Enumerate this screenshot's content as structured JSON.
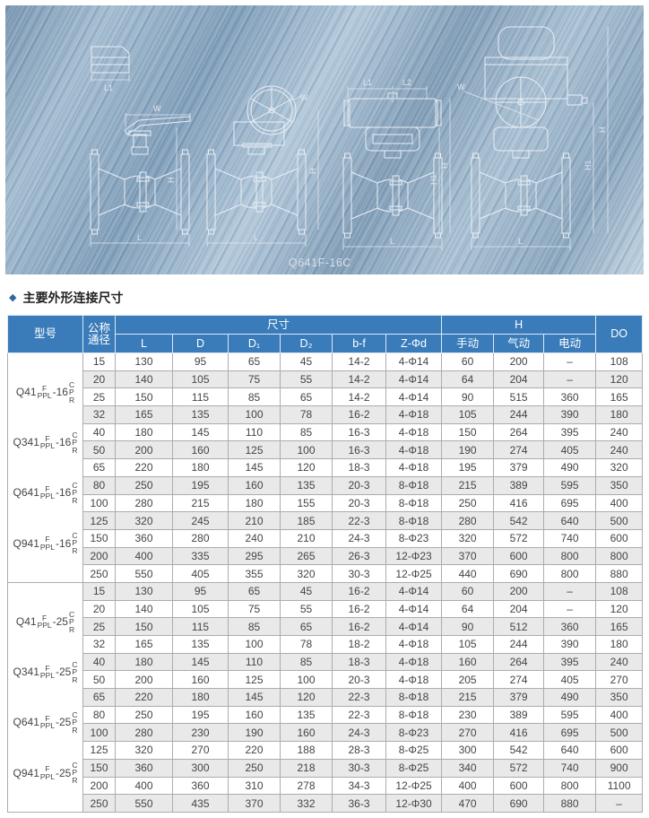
{
  "drawing": {
    "caption": "Q641F-16C",
    "labels": {
      "l": "L",
      "l1": "L1",
      "l2": "L2",
      "w": "W",
      "h": "H",
      "h1": "H1"
    }
  },
  "page": {
    "bullet": "◆",
    "title": "主要外形连接尺寸"
  },
  "table": {
    "header": {
      "model": "型号",
      "dn": "公称通径",
      "size": "尺寸",
      "h": "H",
      "do": "DO",
      "size_cols": [
        "L",
        "D",
        "D₁",
        "D₂",
        "b-f",
        "Z-Φd"
      ],
      "h_cols": [
        "手动",
        "气动",
        "电动"
      ]
    },
    "sections": [
      {
        "models": [
          {
            "base": "Q41",
            "sup": "F",
            "sub": "PPL",
            "mid": "-16",
            "stack": [
              "C",
              "P",
              "R"
            ]
          },
          {
            "base": "Q341",
            "sup": "F",
            "sub": "PPL",
            "mid": "-16",
            "stack": [
              "C",
              "P",
              "R"
            ]
          },
          {
            "base": "Q641",
            "sup": "F",
            "sub": "PPL",
            "mid": "-16",
            "stack": [
              "C",
              "P",
              "R"
            ]
          },
          {
            "base": "Q941",
            "sup": "F",
            "sub": "PPL",
            "mid": "-16",
            "stack": [
              "C",
              "P",
              "R"
            ]
          }
        ],
        "rows": [
          [
            "15",
            "130",
            "95",
            "65",
            "45",
            "14-2",
            "4-Φ14",
            "60",
            "200",
            "–",
            "108"
          ],
          [
            "20",
            "140",
            "105",
            "75",
            "55",
            "14-2",
            "4-Φ14",
            "64",
            "204",
            "–",
            "120"
          ],
          [
            "25",
            "150",
            "115",
            "85",
            "65",
            "14-2",
            "4-Φ14",
            "90",
            "515",
            "360",
            "165"
          ],
          [
            "32",
            "165",
            "135",
            "100",
            "78",
            "16-2",
            "4-Φ18",
            "105",
            "244",
            "390",
            "180"
          ],
          [
            "40",
            "180",
            "145",
            "110",
            "85",
            "16-3",
            "4-Φ18",
            "150",
            "264",
            "395",
            "240"
          ],
          [
            "50",
            "200",
            "160",
            "125",
            "100",
            "16-3",
            "4-Φ18",
            "190",
            "274",
            "405",
            "240"
          ],
          [
            "65",
            "220",
            "180",
            "145",
            "120",
            "18-3",
            "4-Φ18",
            "195",
            "379",
            "490",
            "320"
          ],
          [
            "80",
            "250",
            "195",
            "160",
            "135",
            "20-3",
            "8-Φ18",
            "215",
            "389",
            "595",
            "350"
          ],
          [
            "100",
            "280",
            "215",
            "180",
            "155",
            "20-3",
            "8-Φ18",
            "250",
            "416",
            "695",
            "400"
          ],
          [
            "125",
            "320",
            "245",
            "210",
            "185",
            "22-3",
            "8-Φ18",
            "280",
            "542",
            "640",
            "500"
          ],
          [
            "150",
            "360",
            "280",
            "240",
            "210",
            "24-3",
            "8-Φ23",
            "320",
            "572",
            "740",
            "600"
          ],
          [
            "200",
            "400",
            "335",
            "295",
            "265",
            "26-3",
            "12-Φ23",
            "370",
            "600",
            "800",
            "800"
          ],
          [
            "250",
            "550",
            "405",
            "355",
            "320",
            "30-3",
            "12-Φ25",
            "440",
            "690",
            "800",
            "880"
          ]
        ]
      },
      {
        "models": [
          {
            "base": "Q41",
            "sup": "F",
            "sub": "PPL",
            "mid": "-25",
            "stack": [
              "C",
              "P",
              "R"
            ]
          },
          {
            "base": "Q341",
            "sup": "F",
            "sub": "PPL",
            "mid": "-25",
            "stack": [
              "C",
              "P",
              "R"
            ]
          },
          {
            "base": "Q641",
            "sup": "F",
            "sub": "PPL",
            "mid": "-25",
            "stack": [
              "C",
              "P",
              "R"
            ]
          },
          {
            "base": "Q941",
            "sup": "F",
            "sub": "PPL",
            "mid": "-25",
            "stack": [
              "C",
              "P",
              "R"
            ]
          }
        ],
        "rows": [
          [
            "15",
            "130",
            "95",
            "65",
            "45",
            "16-2",
            "4-Φ14",
            "60",
            "200",
            "–",
            "108"
          ],
          [
            "20",
            "140",
            "105",
            "75",
            "55",
            "16-2",
            "4-Φ14",
            "64",
            "204",
            "–",
            "120"
          ],
          [
            "25",
            "150",
            "115",
            "85",
            "65",
            "16-2",
            "4-Φ14",
            "90",
            "512",
            "360",
            "165"
          ],
          [
            "32",
            "165",
            "135",
            "100",
            "78",
            "18-2",
            "4-Φ18",
            "105",
            "244",
            "390",
            "180"
          ],
          [
            "40",
            "180",
            "145",
            "110",
            "85",
            "18-3",
            "4-Φ18",
            "160",
            "264",
            "395",
            "240"
          ],
          [
            "50",
            "200",
            "160",
            "125",
            "100",
            "20-3",
            "4-Φ18",
            "205",
            "274",
            "405",
            "270"
          ],
          [
            "65",
            "220",
            "180",
            "145",
            "120",
            "22-3",
            "8-Φ18",
            "215",
            "379",
            "490",
            "350"
          ],
          [
            "80",
            "250",
            "195",
            "160",
            "135",
            "22-3",
            "8-Φ18",
            "230",
            "389",
            "595",
            "400"
          ],
          [
            "100",
            "280",
            "230",
            "190",
            "160",
            "24-3",
            "8-Φ23",
            "270",
            "416",
            "695",
            "500"
          ],
          [
            "125",
            "320",
            "270",
            "220",
            "188",
            "28-3",
            "8-Φ25",
            "300",
            "542",
            "640",
            "600"
          ],
          [
            "150",
            "360",
            "300",
            "250",
            "218",
            "30-3",
            "8-Φ25",
            "340",
            "572",
            "740",
            "900"
          ],
          [
            "200",
            "400",
            "360",
            "310",
            "278",
            "34-3",
            "12-Φ25",
            "400",
            "600",
            "800",
            "1100"
          ],
          [
            "250",
            "550",
            "435",
            "370",
            "332",
            "36-3",
            "12-Φ30",
            "470",
            "690",
            "880",
            "–"
          ]
        ]
      }
    ]
  }
}
